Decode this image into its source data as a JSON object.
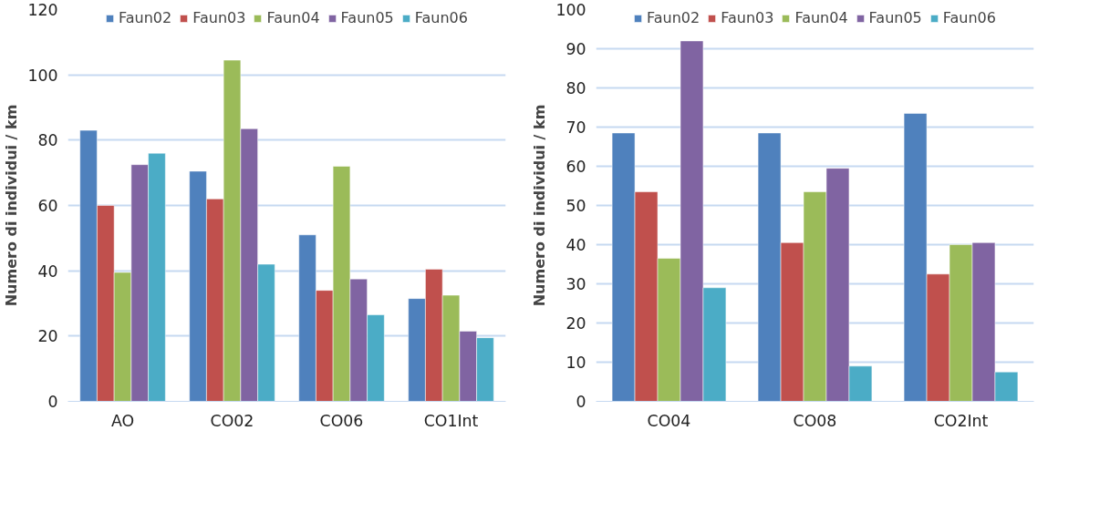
{
  "chart_data": [
    {
      "type": "bar",
      "ylabel": "Numero di individui / km",
      "categories": [
        "AO",
        "CO02",
        "CO06",
        "CO1Int"
      ],
      "ylim": [
        0,
        120
      ],
      "yticks": [
        0,
        20,
        40,
        60,
        80,
        100,
        120
      ],
      "grid": "y",
      "legend": "top",
      "series": [
        {
          "name": "Faun02",
          "color": "#4f81bd",
          "values": [
            83,
            70.5,
            51,
            31.5
          ]
        },
        {
          "name": "Faun03",
          "color": "#c0504d",
          "values": [
            60,
            62,
            34,
            40.5
          ]
        },
        {
          "name": "Faun04",
          "color": "#9bbb59",
          "values": [
            39.5,
            104.5,
            72,
            32.5
          ]
        },
        {
          "name": "Faun05",
          "color": "#8064a2",
          "values": [
            72.5,
            83.5,
            37.5,
            21.5
          ]
        },
        {
          "name": "Faun06",
          "color": "#4bacc6",
          "values": [
            76,
            42,
            26.5,
            19.5
          ]
        }
      ]
    },
    {
      "type": "bar",
      "ylabel": "Numero di individui / km",
      "categories": [
        "CO04",
        "CO08",
        "CO2Int"
      ],
      "ylim": [
        0,
        100
      ],
      "yticks": [
        0,
        10,
        20,
        30,
        40,
        50,
        60,
        70,
        80,
        90,
        100
      ],
      "grid": "y",
      "legend": "top",
      "series": [
        {
          "name": "Faun02",
          "color": "#4f81bd",
          "values": [
            68.5,
            68.5,
            73.5
          ]
        },
        {
          "name": "Faun03",
          "color": "#c0504d",
          "values": [
            53.5,
            40.5,
            32.5
          ]
        },
        {
          "name": "Faun04",
          "color": "#9bbb59",
          "values": [
            36.5,
            53.5,
            40
          ]
        },
        {
          "name": "Faun05",
          "color": "#8064a2",
          "values": [
            92,
            59.5,
            40.5
          ]
        },
        {
          "name": "Faun06",
          "color": "#4bacc6",
          "values": [
            29,
            9,
            7.5
          ]
        }
      ]
    }
  ]
}
